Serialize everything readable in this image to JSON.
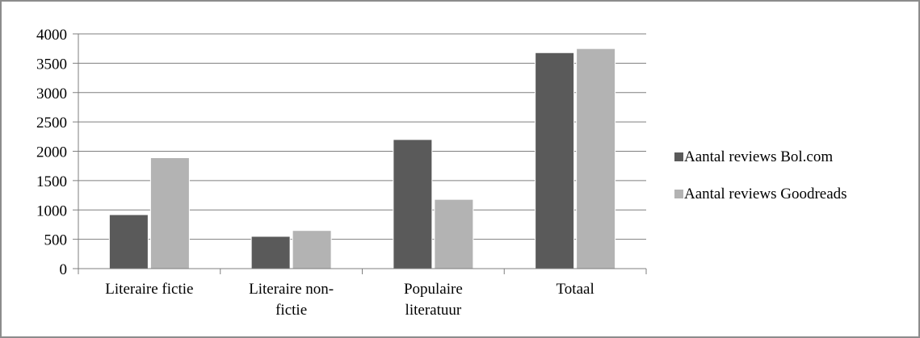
{
  "chart_data": {
    "type": "bar",
    "title": "",
    "xlabel": "",
    "ylabel": "",
    "categories": [
      [
        "Literaire fictie"
      ],
      [
        "Literaire non-",
        "fictie"
      ],
      [
        "Populaire",
        "literatuur"
      ],
      [
        "Totaal"
      ]
    ],
    "series": [
      {
        "name": "Aantal reviews Bol.com",
        "values": [
          920,
          550,
          2200,
          3680
        ],
        "color": "#5a5a5a"
      },
      {
        "name": "Aantal reviews Goodreads",
        "values": [
          1890,
          650,
          1180,
          3750
        ],
        "color": "#b3b3b3"
      }
    ],
    "ylim": [
      0,
      4000
    ],
    "yticks": [
      0,
      500,
      1000,
      1500,
      2000,
      2500,
      3000,
      3500,
      4000
    ],
    "grid": true,
    "legend_position": "right"
  },
  "colors": {
    "gridline": "#7f7f7f",
    "axis": "#7f7f7f",
    "frame": "#8c8c8c"
  }
}
